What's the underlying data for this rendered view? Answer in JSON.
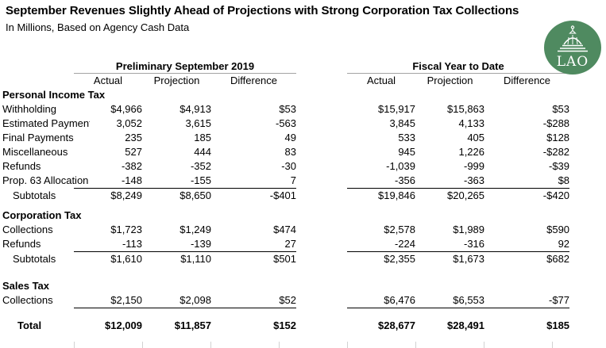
{
  "title": "September Revenues Slightly Ahead of Projections with Strong Corporation Tax Collections",
  "subtitle": "In Millions, Based on Agency Cash Data",
  "logo": {
    "label": "LAO",
    "icon": "capitol-dome-icon",
    "color": "#4f8a60"
  },
  "chart_data": {
    "type": "table",
    "title": "September Revenues Slightly Ahead of Projections with Strong Corporation Tax Collections",
    "subtitle": "In Millions, Based on Agency Cash Data",
    "column_groups": [
      "Preliminary September 2019",
      "Fiscal Year to Date"
    ],
    "columns": [
      "Actual",
      "Projection",
      "Difference"
    ],
    "sections": [
      {
        "header": "Personal Income Tax",
        "rows": [
          {
            "label": "Withholding",
            "prelim": [
              "$4,966",
              "$4,913",
              "$53"
            ],
            "fytd": [
              "$15,917",
              "$15,863",
              "$53"
            ]
          },
          {
            "label": "Estimated Payments",
            "prelim": [
              "3,052",
              "3,615",
              "-563"
            ],
            "fytd": [
              "3,845",
              "4,133",
              "-$288"
            ]
          },
          {
            "label": "Final Payments",
            "prelim": [
              "235",
              "185",
              "49"
            ],
            "fytd": [
              "533",
              "405",
              "$128"
            ]
          },
          {
            "label": "Miscellaneous",
            "prelim": [
              "527",
              "444",
              "83"
            ],
            "fytd": [
              "945",
              "1,226",
              "-$282"
            ]
          },
          {
            "label": "Refunds",
            "prelim": [
              "-382",
              "-352",
              "-30"
            ],
            "fytd": [
              "-1,039",
              "-999",
              "-$39"
            ]
          },
          {
            "label": "Prop. 63 Allocation",
            "prelim": [
              "-148",
              "-155",
              "7"
            ],
            "fytd": [
              "-356",
              "-363",
              "$8"
            ],
            "rule_below": true
          }
        ],
        "subtotal": {
          "label": "Subtotals",
          "prelim": [
            "$8,249",
            "$8,650",
            "-$401"
          ],
          "fytd": [
            "$19,846",
            "$20,265",
            "-$420"
          ]
        }
      },
      {
        "header": "Corporation Tax",
        "rows": [
          {
            "label": "Collections",
            "prelim": [
              "$1,723",
              "$1,249",
              "$474"
            ],
            "fytd": [
              "$2,578",
              "$1,989",
              "$590"
            ]
          },
          {
            "label": "Refunds",
            "prelim": [
              "-113",
              "-139",
              "27"
            ],
            "fytd": [
              "-224",
              "-316",
              "92"
            ],
            "rule_below": true
          }
        ],
        "subtotal": {
          "label": "Subtotals",
          "prelim": [
            "$1,610",
            "$1,110",
            "$501"
          ],
          "fytd": [
            "$2,355",
            "$1,673",
            "$682"
          ]
        }
      },
      {
        "header": "Sales Tax",
        "rows": [
          {
            "label": "Collections",
            "prelim": [
              "$2,150",
              "$2,098",
              "$52"
            ],
            "fytd": [
              "$6,476",
              "$6,553",
              "-$77"
            ],
            "rule_below": true
          }
        ]
      }
    ],
    "total": {
      "label": "Total",
      "prelim": [
        "$12,009",
        "$11,857",
        "$152"
      ],
      "fytd": [
        "$28,677",
        "$28,491",
        "$185"
      ]
    }
  }
}
